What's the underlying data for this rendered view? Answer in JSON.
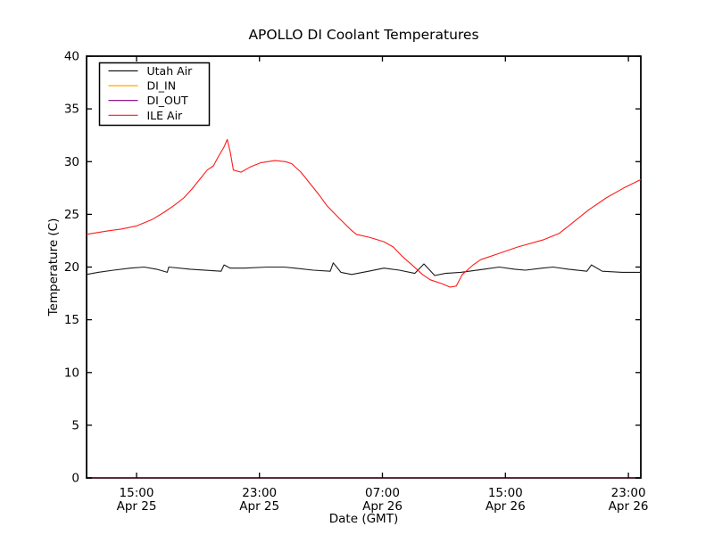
{
  "figure": {
    "title": "APOLLO DI Coolant Temperatures",
    "xlabel": "Date (GMT)",
    "ylabel": "Temperature (C)",
    "background_color": "#ffffff",
    "spine_color": "#000000"
  },
  "chart_data": {
    "type": "line",
    "title": "APOLLO DI Coolant Temperatures",
    "xlabel": "Date (GMT)",
    "ylabel": "Temperature (C)",
    "x_unit_note": "hours since Apr 25 12:00 GMT",
    "xlim": [
      -0.25,
      35.81
    ],
    "ylim": [
      0,
      40
    ],
    "grid": false,
    "yticks": [
      0,
      5,
      10,
      15,
      20,
      25,
      30,
      35,
      40
    ],
    "xticks": [
      {
        "hour": 3,
        "time": "15:00",
        "date": "Apr 25"
      },
      {
        "hour": 11,
        "time": "23:00",
        "date": "Apr 25"
      },
      {
        "hour": 19,
        "time": "07:00",
        "date": "Apr 26"
      },
      {
        "hour": 27,
        "time": "15:00",
        "date": "Apr 26"
      },
      {
        "hour": 35,
        "time": "23:00",
        "date": "Apr 26"
      }
    ],
    "legend": {
      "position": "upper-left",
      "entries": [
        "Utah Air",
        "DI_IN",
        "DI_OUT",
        "ILE Air"
      ]
    },
    "series": [
      {
        "name": "Utah Air",
        "color": "#1a1a1a",
        "points": [
          [
            -0.25,
            19.3
          ],
          [
            0.5,
            19.5
          ],
          [
            1.5,
            19.7
          ],
          [
            2.6,
            19.9
          ],
          [
            3.5,
            20.0
          ],
          [
            4.3,
            19.8
          ],
          [
            5.0,
            19.5
          ],
          [
            5.1,
            20.0
          ],
          [
            6.5,
            19.8
          ],
          [
            8.5,
            19.6
          ],
          [
            8.7,
            20.2
          ],
          [
            9.1,
            19.9
          ],
          [
            10.0,
            19.9
          ],
          [
            11.5,
            20.0
          ],
          [
            12.6,
            20.0
          ],
          [
            13.3,
            19.9
          ],
          [
            14.5,
            19.7
          ],
          [
            15.6,
            19.6
          ],
          [
            15.8,
            20.4
          ],
          [
            16.3,
            19.5
          ],
          [
            17.0,
            19.3
          ],
          [
            18.1,
            19.6
          ],
          [
            19.1,
            19.9
          ],
          [
            20.1,
            19.7
          ],
          [
            21.1,
            19.4
          ],
          [
            21.7,
            20.3
          ],
          [
            22.4,
            19.2
          ],
          [
            23.1,
            19.4
          ],
          [
            24.1,
            19.5
          ],
          [
            25.6,
            19.8
          ],
          [
            26.6,
            20.0
          ],
          [
            27.6,
            19.8
          ],
          [
            28.3,
            19.7
          ],
          [
            29.4,
            19.9
          ],
          [
            30.1,
            20.0
          ],
          [
            31.1,
            19.8
          ],
          [
            32.3,
            19.6
          ],
          [
            32.6,
            20.2
          ],
          [
            33.3,
            19.6
          ],
          [
            34.6,
            19.5
          ],
          [
            35.81,
            19.5
          ]
        ]
      },
      {
        "name": "DI_IN",
        "color": "#ffa500",
        "points": [
          [
            -0.25,
            0
          ],
          [
            35.81,
            0
          ]
        ]
      },
      {
        "name": "DI_OUT",
        "color": "#800080",
        "points": [
          [
            -0.25,
            0
          ],
          [
            35.81,
            0
          ]
        ]
      },
      {
        "name": "ILE Air",
        "color": "#ff1a1a",
        "points": [
          [
            -0.25,
            23.1
          ],
          [
            1.0,
            23.4
          ],
          [
            2.0,
            23.6
          ],
          [
            3.0,
            23.9
          ],
          [
            4.0,
            24.5
          ],
          [
            4.8,
            25.2
          ],
          [
            5.5,
            25.9
          ],
          [
            6.1,
            26.6
          ],
          [
            6.6,
            27.4
          ],
          [
            7.1,
            28.3
          ],
          [
            7.6,
            29.2
          ],
          [
            8.0,
            29.6
          ],
          [
            8.3,
            30.4
          ],
          [
            8.7,
            31.4
          ],
          [
            8.9,
            32.1
          ],
          [
            9.1,
            30.9
          ],
          [
            9.3,
            29.2
          ],
          [
            9.8,
            29.0
          ],
          [
            10.4,
            29.5
          ],
          [
            11.1,
            29.9
          ],
          [
            12.0,
            30.1
          ],
          [
            12.7,
            30.0
          ],
          [
            13.1,
            29.8
          ],
          [
            13.7,
            29.0
          ],
          [
            14.3,
            27.9
          ],
          [
            14.9,
            26.8
          ],
          [
            15.4,
            25.8
          ],
          [
            16.2,
            24.6
          ],
          [
            16.9,
            23.6
          ],
          [
            17.3,
            23.1
          ],
          [
            18.2,
            22.8
          ],
          [
            19.1,
            22.4
          ],
          [
            19.7,
            21.9
          ],
          [
            20.3,
            21.0
          ],
          [
            21.0,
            20.1
          ],
          [
            21.6,
            19.3
          ],
          [
            22.1,
            18.8
          ],
          [
            22.9,
            18.4
          ],
          [
            23.4,
            18.1
          ],
          [
            23.8,
            18.2
          ],
          [
            24.2,
            19.3
          ],
          [
            24.9,
            20.2
          ],
          [
            25.4,
            20.7
          ],
          [
            26.6,
            21.3
          ],
          [
            27.8,
            21.9
          ],
          [
            29.5,
            22.6
          ],
          [
            30.5,
            23.2
          ],
          [
            31.2,
            24.0
          ],
          [
            32.4,
            25.4
          ],
          [
            33.6,
            26.6
          ],
          [
            34.7,
            27.5
          ],
          [
            35.81,
            28.3
          ]
        ]
      }
    ]
  }
}
